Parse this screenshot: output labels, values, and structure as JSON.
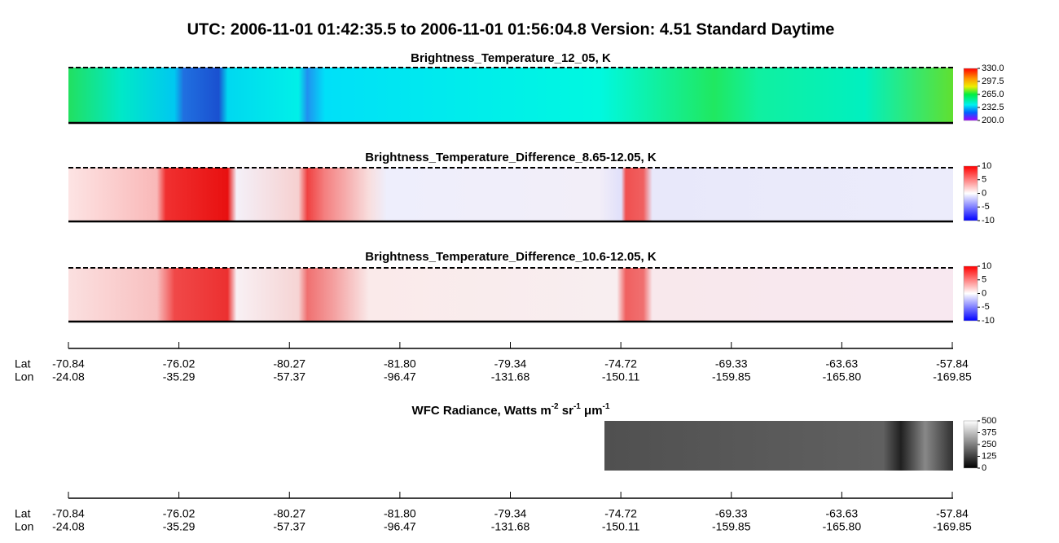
{
  "title": "UTC:  2006-11-01   01:42:35.5  to  2006-11-01   01:56:04.8    Version: 4.51  Standard Daytime",
  "panels": [
    {
      "title": "Brightness_Temperature_12_05, K",
      "colorbar_ticks": [
        "330.0",
        "297.5",
        "265.0",
        "232.5",
        "200.0"
      ]
    },
    {
      "title": "Brightness_Temperature_Difference_8.65-12.05, K",
      "colorbar_ticks": [
        "10",
        "5",
        "0",
        "-5",
        "-10"
      ]
    },
    {
      "title": "Brightness_Temperature_Difference_10.6-12.05, K",
      "colorbar_ticks": [
        "10",
        "5",
        "0",
        "-5",
        "-10"
      ]
    },
    {
      "title_parts": [
        "WFC Radiance, Watts m",
        "-2",
        " sr",
        "-1",
        " μm",
        "-1"
      ],
      "colorbar_ticks": [
        "500",
        "375",
        "250",
        "125",
        "0"
      ]
    }
  ],
  "axes": [
    {
      "lat_label": "Lat",
      "lon_label": "Lon",
      "lat": [
        "-70.84",
        "-76.02",
        "-80.27",
        "-81.80",
        "-79.34",
        "-74.72",
        "-69.33",
        "-63.63",
        "-57.84"
      ],
      "lon": [
        "-24.08",
        "-35.29",
        "-57.37",
        "-96.47",
        "-131.68",
        "-150.11",
        "-159.85",
        "-165.80",
        "-169.85"
      ]
    },
    {
      "lat_label": "Lat",
      "lon_label": "Lon",
      "lat": [
        "-70.84",
        "-76.02",
        "-80.27",
        "-81.80",
        "-79.34",
        "-74.72",
        "-69.33",
        "-63.63",
        "-57.84"
      ],
      "lon": [
        "-24.08",
        "-35.29",
        "-57.37",
        "-96.47",
        "-131.68",
        "-150.11",
        "-159.85",
        "-165.80",
        "-169.85"
      ]
    }
  ]
}
